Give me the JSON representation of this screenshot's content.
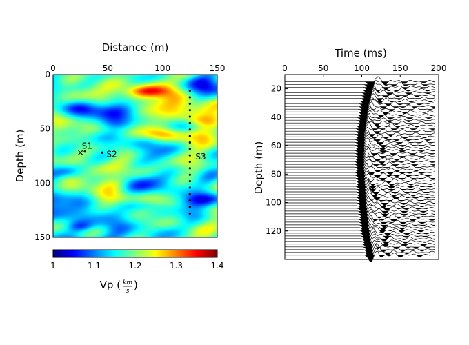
{
  "chart_data": [
    {
      "type": "heatmap",
      "title": "",
      "xlabel": "Distance (m)",
      "ylabel": "Depth (m)",
      "xlim": [
        0,
        150
      ],
      "ylim": [
        0,
        150
      ],
      "y_reversed": true,
      "x_axis_position": "top",
      "xticks": [
        "0",
        "50",
        "100",
        "150"
      ],
      "yticks": [
        "0",
        "50",
        "100",
        "150"
      ],
      "colormap": "jet",
      "colorbar": {
        "label_main": "Vp (",
        "label_num": "km",
        "label_den": "s",
        "label_close": ")",
        "range": [
          1.0,
          1.4
        ],
        "ticks": [
          "1",
          "1.1",
          "1.2",
          "1.3",
          "1.4"
        ],
        "placement": "bottom"
      },
      "field_range": [
        1.0,
        1.4
      ],
      "sources": [
        {
          "name": "S1",
          "x": 25,
          "y": 72,
          "marker": "x"
        },
        {
          "name": "S1",
          "x": 29,
          "y": 71,
          "marker": "dot"
        },
        {
          "name": "S2",
          "x": 45,
          "y": 72,
          "marker": "dot"
        }
      ],
      "receiver_line": {
        "name": "S3",
        "x": 125,
        "y_start": 15,
        "y_end": 128,
        "count": 20,
        "label_y": 75
      }
    },
    {
      "type": "line",
      "title": "",
      "xlabel": "Time (ms)",
      "ylabel": "Depth (m)",
      "xlim": [
        0,
        200
      ],
      "ylim": [
        10,
        140
      ],
      "y_reversed": true,
      "x_axis_position": "top",
      "xticks": [
        "0",
        "50",
        "100",
        "150",
        "200"
      ],
      "yticks": [
        "20",
        "40",
        "60",
        "80",
        "100",
        "120"
      ],
      "trace_count": 64,
      "trace_depth_range": [
        15,
        137
      ],
      "trace_time_end": 195,
      "first_arrival_ms": {
        "depths": [
          15,
          30,
          50,
          72,
          100,
          120,
          137
        ],
        "times": [
          110,
          103,
          98,
          97,
          100,
          104,
          110
        ]
      }
    }
  ],
  "colors": {
    "axes": "#000000",
    "background": "#ffffff",
    "trace": "#000000"
  }
}
